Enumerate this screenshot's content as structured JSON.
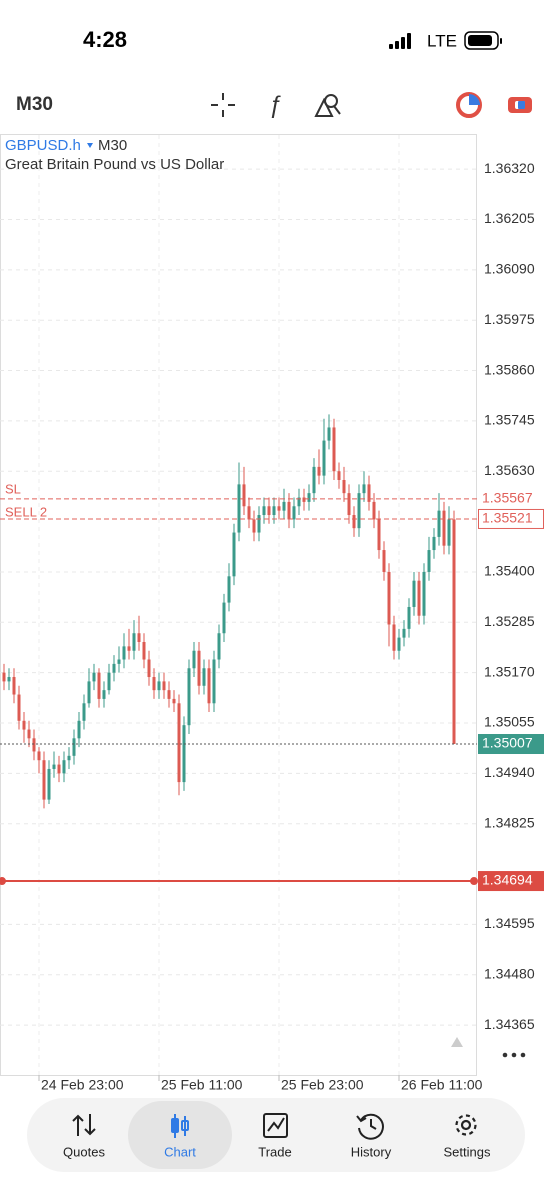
{
  "status_bar": {
    "time": "4:28",
    "network": "LTE"
  },
  "toolbar": {
    "timeframe": "M30"
  },
  "chart_data": {
    "type": "candlestick",
    "symbol": "GBPUSD.h",
    "timeframe": "M30",
    "description": "Great Britain Pound vs US Dollar",
    "categories": [
      null,
      null,
      null,
      null,
      null,
      null,
      null,
      "24 Feb 23:00",
      null,
      null,
      null,
      null,
      null,
      null,
      null,
      null,
      null,
      null,
      null,
      null,
      null,
      null,
      null,
      null,
      null,
      null,
      null,
      null,
      null,
      null,
      null,
      "25 Feb 11:00",
      null,
      null,
      null,
      null,
      null,
      null,
      null,
      null,
      null,
      null,
      null,
      null,
      null,
      null,
      null,
      null,
      null,
      null,
      null,
      null,
      null,
      null,
      null,
      "25 Feb 23:00",
      null,
      null,
      null,
      null,
      null,
      null,
      null,
      null,
      null,
      null,
      null,
      null,
      null,
      null,
      null,
      null,
      null,
      null,
      null,
      null,
      null,
      null,
      null,
      "26 Feb 11:00",
      null,
      null,
      null,
      null,
      null,
      null,
      null,
      null,
      null,
      null,
      null
    ],
    "open": [
      1.3517,
      1.3515,
      1.3516,
      1.3512,
      1.3506,
      1.3504,
      1.3502,
      1.3499,
      1.3497,
      1.3488,
      1.3495,
      1.3496,
      1.3494,
      1.3497,
      1.3498,
      1.3502,
      1.3506,
      1.351,
      1.3515,
      1.3517,
      1.3511,
      1.3513,
      1.3517,
      1.3519,
      1.352,
      1.3523,
      1.3522,
      1.3526,
      1.3524,
      1.352,
      1.3516,
      1.3513,
      1.3515,
      1.3513,
      1.3511,
      1.351,
      1.3492,
      1.3505,
      1.3518,
      1.3522,
      1.3514,
      1.3518,
      1.351,
      1.352,
      1.3526,
      1.3533,
      1.3539,
      1.3549,
      1.356,
      1.3555,
      1.3552,
      1.3549,
      1.3553,
      1.3555,
      1.3553,
      1.3555,
      1.3554,
      1.3556,
      1.3552,
      1.3555,
      1.3557,
      1.3556,
      1.3558,
      1.3564,
      1.3562,
      1.357,
      1.3573,
      1.3563,
      1.3561,
      1.3558,
      1.3553,
      1.355,
      1.3558,
      1.356,
      1.3556,
      1.3552,
      1.3545,
      1.354,
      1.3528,
      1.3522,
      1.3525,
      1.3527,
      1.3532,
      1.3538,
      1.353,
      1.354,
      1.3545,
      1.3548,
      1.3554,
      1.3546,
      1.3552
    ],
    "high": [
      1.3519,
      1.3518,
      1.3518,
      1.3514,
      1.3508,
      1.3506,
      1.3504,
      1.35,
      1.3499,
      1.3497,
      1.3499,
      1.3498,
      1.3499,
      1.35,
      1.3504,
      1.3508,
      1.3512,
      1.3518,
      1.3519,
      1.3518,
      1.3515,
      1.3519,
      1.3521,
      1.3523,
      1.3526,
      1.3527,
      1.3529,
      1.353,
      1.3526,
      1.3522,
      1.3518,
      1.3517,
      1.3517,
      1.3515,
      1.3513,
      1.3512,
      1.3507,
      1.352,
      1.3524,
      1.3524,
      1.352,
      1.352,
      1.3522,
      1.3528,
      1.3535,
      1.3542,
      1.3551,
      1.3565,
      1.3564,
      1.3557,
      1.3554,
      1.3555,
      1.3557,
      1.3557,
      1.3557,
      1.3557,
      1.3559,
      1.3558,
      1.3557,
      1.3559,
      1.3559,
      1.356,
      1.3566,
      1.3568,
      1.3575,
      1.3576,
      1.3575,
      1.3565,
      1.3564,
      1.356,
      1.3555,
      1.356,
      1.3563,
      1.3562,
      1.3558,
      1.3554,
      1.3547,
      1.3542,
      1.353,
      1.3527,
      1.3529,
      1.3534,
      1.354,
      1.354,
      1.3542,
      1.3548,
      1.355,
      1.3558,
      1.3556,
      1.3555,
      1.3554
    ],
    "low": [
      1.3513,
      1.3513,
      1.351,
      1.3504,
      1.3501,
      1.35,
      1.3497,
      1.3494,
      1.3486,
      1.3487,
      1.3493,
      1.3492,
      1.3492,
      1.3495,
      1.3496,
      1.35,
      1.3504,
      1.3509,
      1.3513,
      1.3509,
      1.3509,
      1.3512,
      1.3515,
      1.3517,
      1.3518,
      1.352,
      1.352,
      1.3522,
      1.3518,
      1.3514,
      1.3511,
      1.3511,
      1.3511,
      1.3509,
      1.3508,
      1.3489,
      1.349,
      1.3503,
      1.3516,
      1.3512,
      1.3512,
      1.3508,
      1.3508,
      1.3518,
      1.3524,
      1.3531,
      1.3537,
      1.3547,
      1.3553,
      1.355,
      1.3547,
      1.3547,
      1.3551,
      1.3551,
      1.3551,
      1.3552,
      1.3552,
      1.355,
      1.355,
      1.3553,
      1.3554,
      1.3554,
      1.3556,
      1.356,
      1.356,
      1.3568,
      1.3561,
      1.3559,
      1.3556,
      1.3551,
      1.3548,
      1.3548,
      1.3556,
      1.3554,
      1.355,
      1.3543,
      1.3538,
      1.3523,
      1.352,
      1.352,
      1.3523,
      1.3525,
      1.353,
      1.3528,
      1.3528,
      1.3538,
      1.3543,
      1.3546,
      1.3544,
      1.3544,
      1.35007
    ],
    "close": [
      1.3515,
      1.3516,
      1.3512,
      1.3506,
      1.3504,
      1.3502,
      1.3499,
      1.3497,
      1.3488,
      1.3495,
      1.3496,
      1.3494,
      1.3497,
      1.3498,
      1.3502,
      1.3506,
      1.351,
      1.3515,
      1.3517,
      1.3511,
      1.3513,
      1.3517,
      1.3519,
      1.352,
      1.3523,
      1.3522,
      1.3526,
      1.3524,
      1.352,
      1.3516,
      1.3513,
      1.3515,
      1.3513,
      1.3511,
      1.351,
      1.3492,
      1.3505,
      1.3518,
      1.3522,
      1.3514,
      1.3518,
      1.351,
      1.352,
      1.3526,
      1.3533,
      1.3539,
      1.3549,
      1.356,
      1.3555,
      1.3552,
      1.3549,
      1.3553,
      1.3555,
      1.3553,
      1.3555,
      1.3554,
      1.3556,
      1.3552,
      1.3555,
      1.3557,
      1.3556,
      1.3558,
      1.3564,
      1.3562,
      1.357,
      1.3573,
      1.3563,
      1.3561,
      1.3558,
      1.3553,
      1.355,
      1.3558,
      1.356,
      1.3556,
      1.3552,
      1.3545,
      1.354,
      1.3528,
      1.3522,
      1.3525,
      1.3527,
      1.3532,
      1.3538,
      1.353,
      1.354,
      1.3545,
      1.3548,
      1.3554,
      1.3546,
      1.3552,
      1.35007
    ],
    "up_color": "#3b9a8a",
    "down_color": "#dc5a52",
    "ylim": [
      1.34251,
      1.36398
    ],
    "yticks": [
      {
        "value": 1.3632,
        "label": "1.36320"
      },
      1.36205,
      {
        "value": 1.3609,
        "label": "1.36090"
      },
      1.35975,
      {
        "value": 1.3586,
        "label": "1.35860"
      },
      1.35745,
      {
        "value": 1.3563,
        "label": "1.35630"
      },
      {
        "value": 1.354,
        "label": "1.35400"
      },
      1.35285,
      {
        "value": 1.3517,
        "label": "1.35170"
      },
      1.35055,
      {
        "value": 1.3494,
        "label": "1.34940"
      },
      1.34825,
      1.34595,
      {
        "value": 1.3448,
        "label": "1.34480"
      },
      1.34365
    ],
    "grid": true,
    "levels": [
      {
        "name": "SL",
        "value": 1.35567,
        "color": "#e0605a",
        "style": "dashed",
        "box": "none"
      },
      {
        "name": "SELL 2",
        "value": 1.35521,
        "color": "#e0605a",
        "style": "dashed",
        "box": "outline"
      },
      {
        "value": 1.35007,
        "color": "#3b9a8a",
        "style": "dotted",
        "box": "filled"
      },
      {
        "value": 1.34694,
        "color": "#dc4b43",
        "style": "solid",
        "box": "filled"
      }
    ]
  },
  "tab_bar": {
    "tabs": [
      "Quotes",
      "Chart",
      "Trade",
      "History",
      "Settings"
    ],
    "active": 1
  }
}
